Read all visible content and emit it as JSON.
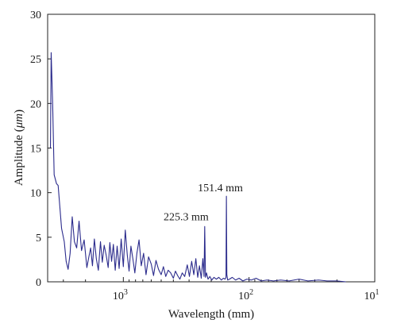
{
  "chart_data": {
    "type": "line",
    "xscale": "log",
    "x_reversed": true,
    "xlim": [
      4000,
      10
    ],
    "ylim": [
      0,
      30
    ],
    "xlabel": "Wavelength (mm)",
    "ylabel_prefix": "Amplitude (",
    "ylabel_unit": "μm",
    "ylabel_suffix": ")",
    "x_ticks": [
      {
        "value": 1000,
        "base": "10",
        "exp": "3"
      },
      {
        "value": 100,
        "base": "10",
        "exp": "2"
      },
      {
        "value": 10,
        "base": "10",
        "exp": "1"
      }
    ],
    "y_ticks": [
      0,
      5,
      10,
      15,
      20,
      25,
      30
    ],
    "grid": false,
    "colors": {
      "series": "#2b2b8c",
      "axis": "#222222"
    },
    "annotations": [
      {
        "text": "225.3 mm",
        "x": 225.3,
        "y": 6.2
      },
      {
        "text": "151.4 mm",
        "x": 151.4,
        "y": 9.6
      }
    ],
    "series": [
      {
        "x": [
          3800,
          3750,
          3650,
          3550,
          3400,
          3300,
          3100,
          2950,
          2850,
          2750,
          2650,
          2550,
          2450,
          2350,
          2250,
          2150,
          2050,
          1950,
          1880,
          1820,
          1760,
          1700,
          1640,
          1580,
          1520,
          1470,
          1420,
          1370,
          1320,
          1280,
          1240,
          1200,
          1160,
          1120,
          1080,
          1040,
          1000,
          965,
          930,
          900,
          870,
          840,
          810,
          780,
          750,
          720,
          690,
          660,
          630,
          600,
          575,
          550,
          525,
          500,
          480,
          460,
          440,
          420,
          400,
          385,
          370,
          355,
          340,
          325,
          310,
          298,
          286,
          275,
          265,
          256,
          248,
          240,
          233,
          228,
          225.3,
          222,
          218,
          212,
          205,
          198,
          190,
          182,
          174,
          166,
          160,
          155,
          152.5,
          151.4,
          150.2,
          148,
          143,
          136,
          128,
          120,
          112,
          104,
          96,
          88,
          80,
          72,
          64,
          56,
          48,
          40,
          34,
          28,
          24,
          20,
          17
        ],
        "y": [
          15,
          25.7,
          20,
          12,
          11,
          10.8,
          6,
          4.5,
          2.3,
          1.4,
          3.2,
          7.3,
          4.5,
          3.8,
          6.8,
          3.5,
          4.7,
          1.6,
          2.8,
          3.8,
          1.8,
          4.8,
          2.6,
          1.3,
          4.5,
          2.2,
          4.1,
          3.0,
          1.6,
          4.4,
          2.3,
          4.2,
          1.3,
          4.0,
          1.5,
          4.8,
          1.7,
          5.8,
          3.0,
          1.2,
          4.0,
          2.6,
          1.0,
          3.2,
          4.7,
          1.8,
          3.2,
          0.8,
          2.8,
          2.0,
          0.7,
          2.4,
          1.4,
          0.8,
          1.7,
          0.6,
          1.3,
          1.0,
          0.4,
          1.2,
          0.7,
          0.3,
          1.0,
          0.6,
          1.9,
          0.6,
          2.3,
          0.8,
          2.6,
          0.5,
          1.8,
          0.4,
          2.6,
          0.6,
          6.2,
          0.5,
          1.0,
          0.3,
          0.6,
          0.2,
          0.5,
          0.3,
          0.5,
          0.2,
          0.4,
          0.3,
          0.5,
          9.6,
          0.8,
          0.2,
          0.3,
          0.5,
          0.2,
          0.4,
          0.1,
          0.3,
          0.2,
          0.4,
          0.1,
          0.2,
          0.1,
          0.2,
          0.1,
          0.3,
          0.1,
          0.2,
          0.1,
          0.1,
          0.0
        ]
      }
    ]
  }
}
